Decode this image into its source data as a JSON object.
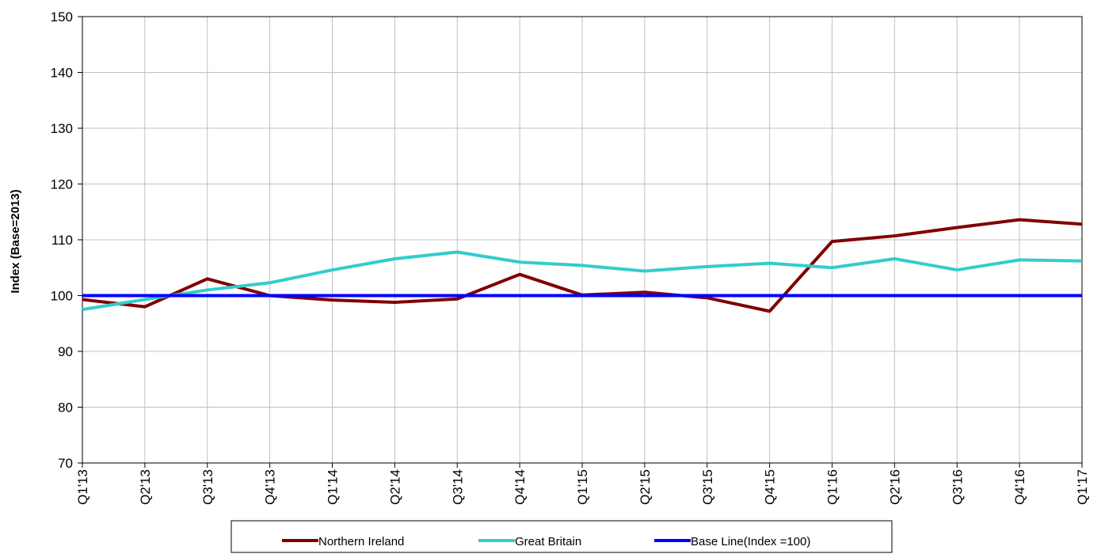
{
  "chart_data": {
    "type": "line",
    "title": "",
    "xlabel": "",
    "ylabel": "Index (Base=2013)",
    "ylim": [
      70,
      150
    ],
    "yticks": [
      70,
      80,
      90,
      100,
      110,
      120,
      130,
      140,
      150
    ],
    "grid": true,
    "legend_position": "bottom",
    "categories": [
      "Q1'13",
      "Q2'13",
      "Q3'13",
      "Q4'13",
      "Q1'14",
      "Q2'14",
      "Q3'14",
      "Q4'14",
      "Q1'15",
      "Q2'15",
      "Q3'15",
      "Q4'15",
      "Q1'16",
      "Q2'16",
      "Q3'16",
      "Q4'16",
      "Q1'17"
    ],
    "series": [
      {
        "name": "Northern Ireland",
        "color": "#800000",
        "values": [
          99.3,
          98.0,
          103.0,
          100.0,
          99.2,
          98.8,
          99.4,
          103.8,
          100.1,
          100.6,
          99.6,
          97.2,
          109.7,
          110.7,
          112.2,
          113.6,
          112.8
        ]
      },
      {
        "name": "Great Britain",
        "color": "#33CCCC",
        "values": [
          97.5,
          99.3,
          101.0,
          102.3,
          104.6,
          106.6,
          107.8,
          106.0,
          105.4,
          104.4,
          105.2,
          105.8,
          105.0,
          106.6,
          104.6,
          106.4,
          106.2
        ]
      },
      {
        "name": "Base Line(Index =100)",
        "color": "#0000FF",
        "values": [
          100,
          100,
          100,
          100,
          100,
          100,
          100,
          100,
          100,
          100,
          100,
          100,
          100,
          100,
          100,
          100,
          100
        ]
      }
    ]
  }
}
